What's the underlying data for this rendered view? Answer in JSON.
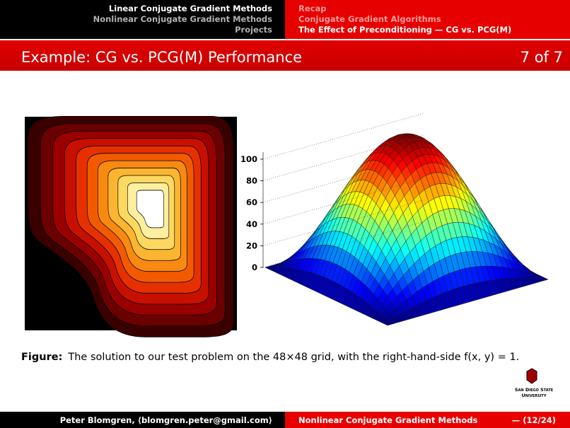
{
  "header": {
    "sections": [
      "Linear Conjugate Gradient Methods",
      "Nonlinear Conjugate Gradient Methods",
      "Projects"
    ],
    "subsections": [
      "Recap",
      "Conjugate Gradient Algorithms",
      "The Effect of Preconditioning — CG vs. PCG(M)"
    ]
  },
  "frame": {
    "title": "Example: CG vs. PCG(M) Performance",
    "counter": "7 of 7"
  },
  "figure": {
    "zticks": [
      0,
      20,
      40,
      60,
      80,
      100
    ],
    "caption_label": "Figure:",
    "caption": "The solution to our test problem on the 48×48 grid, with the right-hand-side f(x, y) = 1."
  },
  "logo": {
    "line1": "San Diego State",
    "line2": "University"
  },
  "footer": {
    "author": "Peter Blomgren, ⟨blomgren.peter@gmail.com⟩",
    "title": "Nonlinear Conjugate Gradient Methods",
    "page": "— (12/24)"
  }
}
